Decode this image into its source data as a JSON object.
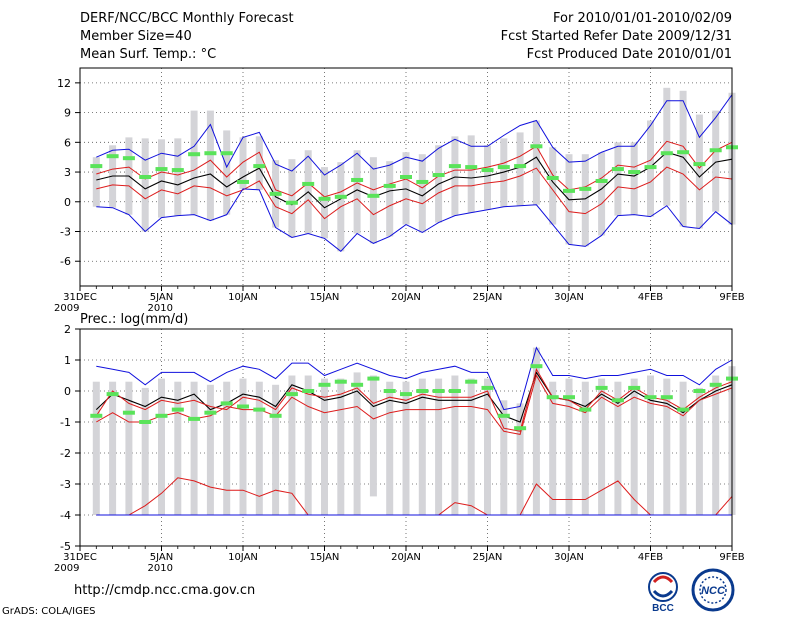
{
  "header": {
    "title": "DERF/NCC/BCC Monthly Forecast",
    "member_size": "Member Size=40",
    "variable": "Mean Surf. Temp.: °C",
    "period": "For 2010/01/01-2010/02/09",
    "started": "Fcst Started Refer Date 2009/12/31",
    "produced": "Fcst Produced Date 2010/01/01"
  },
  "footer": {
    "url": "http://cmdp.ncc.cma.gov.cn",
    "grads": "GrADS: COLA/IGES",
    "logo_left_text": "BCC",
    "logo_right_text": "NCC"
  },
  "colors": {
    "box": "#d4d4d8",
    "mean": "#000000",
    "red": "#dd1c1c",
    "blue": "#1010dd",
    "green": "#5ae35a"
  },
  "chart_data": [
    {
      "type": "line",
      "name": "temperature",
      "title": "Mean Surf. Temp.: °C",
      "ylim": [
        -8.5,
        13.5
      ],
      "xlim": [
        0,
        40
      ],
      "yticks": [
        -6,
        -3,
        0,
        3,
        6,
        9,
        12
      ],
      "yticklabels": [
        "-6",
        "-3",
        "0",
        "3",
        "6",
        "9",
        "12"
      ],
      "xticks": [
        0,
        5,
        10,
        15,
        20,
        25,
        30,
        35,
        40
      ],
      "xticklabels": [
        "31DEC",
        "5JAN",
        "10JAN",
        "15JAN",
        "20JAN",
        "25JAN",
        "30JAN",
        "4FEB",
        "9FEB"
      ],
      "xsublabels": [
        "2009",
        "2010",
        "",
        "",
        "",
        "",
        "",
        "",
        ""
      ],
      "grid": true,
      "x": [
        1,
        2,
        3,
        4,
        5,
        6,
        7,
        8,
        9,
        10,
        11,
        12,
        13,
        14,
        15,
        16,
        17,
        18,
        19,
        20,
        21,
        22,
        23,
        24,
        25,
        26,
        27,
        28,
        29,
        30,
        31,
        32,
        33,
        34,
        35,
        36,
        37,
        38,
        39,
        40
      ],
      "series": [
        {
          "name": "ensemble mean",
          "values": [
            2.2,
            2.6,
            2.6,
            1.3,
            2.1,
            1.7,
            2.4,
            2.8,
            1.5,
            2.5,
            3.4,
            0.5,
            -0.3,
            1.0,
            -0.6,
            0.3,
            1.2,
            0.5,
            1.1,
            1.3,
            0.6,
            1.8,
            2.5,
            2.4,
            2.6,
            3.0,
            3.5,
            4.5,
            2.0,
            0.2,
            0.3,
            1.3,
            2.8,
            2.6,
            3.5,
            5.0,
            4.5,
            2.5,
            4.0,
            4.3
          ]
        },
        {
          "name": "upper red",
          "values": [
            2.8,
            3.3,
            3.5,
            2.3,
            3.0,
            2.7,
            3.2,
            4.2,
            2.5,
            4.0,
            5.0,
            1.2,
            0.6,
            1.9,
            0.5,
            1.0,
            1.9,
            1.2,
            1.8,
            2.3,
            1.4,
            2.6,
            3.2,
            3.2,
            3.5,
            3.9,
            4.6,
            5.6,
            2.7,
            1.2,
            1.5,
            2.4,
            3.7,
            3.5,
            4.2,
            6.1,
            5.6,
            3.4,
            5.2,
            6.0
          ]
        },
        {
          "name": "lower red",
          "values": [
            1.3,
            1.7,
            1.6,
            0.3,
            1.2,
            0.8,
            1.6,
            1.4,
            0.6,
            1.2,
            2.1,
            -0.5,
            -1.2,
            0.2,
            -1.7,
            -0.5,
            0.3,
            -1.3,
            -0.4,
            0.3,
            -0.2,
            0.9,
            1.6,
            1.6,
            1.9,
            2.1,
            2.6,
            3.4,
            1.2,
            -1.0,
            -1.2,
            -0.2,
            1.5,
            1.3,
            2.0,
            3.5,
            2.8,
            1.2,
            2.5,
            2.3
          ]
        },
        {
          "name": "upper blue",
          "values": [
            4.5,
            5.2,
            5.3,
            4.2,
            4.9,
            4.6,
            5.6,
            7.8,
            3.5,
            6.5,
            7.0,
            3.8,
            3.1,
            4.6,
            2.7,
            3.7,
            4.9,
            3.3,
            3.7,
            4.5,
            4.1,
            5.4,
            6.3,
            5.6,
            5.6,
            6.7,
            7.7,
            8.2,
            5.5,
            4.0,
            4.1,
            5.0,
            5.6,
            5.6,
            7.7,
            10.2,
            10.2,
            6.5,
            8.5,
            10.8
          ]
        },
        {
          "name": "lower blue",
          "values": [
            -0.5,
            -0.6,
            -1.3,
            -3.0,
            -1.6,
            -1.4,
            -1.3,
            -1.9,
            -1.3,
            1.3,
            1.2,
            -2.6,
            -3.6,
            -3.2,
            -3.7,
            -5.0,
            -3.2,
            -4.2,
            -3.5,
            -2.3,
            -3.1,
            -2.1,
            -1.4,
            -1.1,
            -0.8,
            -0.5,
            -0.4,
            -0.3,
            -2.3,
            -4.3,
            -4.5,
            -3.4,
            -1.4,
            -1.3,
            -1.5,
            -0.4,
            -2.5,
            -2.7,
            -1.0,
            -2.3
          ]
        },
        {
          "name": "observation marker",
          "values": [
            3.6,
            4.6,
            4.4,
            2.5,
            3.3,
            3.2,
            4.8,
            4.9,
            4.9,
            2.0,
            3.6,
            0.8,
            -0.1,
            1.8,
            0.3,
            0.5,
            2.2,
            0.6,
            1.6,
            2.5,
            2.0,
            2.7,
            3.6,
            3.5,
            3.2,
            3.5,
            3.6,
            5.6,
            2.4,
            1.1,
            1.3,
            2.1,
            3.3,
            3.0,
            3.5,
            4.9,
            5.0,
            3.8,
            5.2,
            5.5
          ]
        }
      ],
      "boxes": {
        "low": [
          -0.5,
          -0.6,
          -1.3,
          -3.0,
          -1.6,
          -1.4,
          -1.3,
          -1.9,
          -1.3,
          1.3,
          1.2,
          -2.6,
          -3.6,
          -3.2,
          -3.7,
          -5.0,
          -3.2,
          -4.2,
          -3.5,
          -2.3,
          -3.1,
          -2.1,
          -1.4,
          -1.1,
          -0.8,
          -0.5,
          -0.4,
          -0.3,
          -2.3,
          -4.3,
          -4.5,
          -3.4,
          -1.4,
          -1.3,
          -1.5,
          -0.4,
          -2.5,
          -2.7,
          -1.0,
          -2.3
        ],
        "high": [
          4.5,
          5.7,
          6.5,
          6.4,
          6.3,
          6.4,
          9.2,
          9.2,
          7.2,
          6.5,
          6.6,
          4.2,
          4.3,
          5.2,
          3.5,
          4.0,
          5.2,
          4.5,
          4.1,
          5.0,
          4.8,
          5.7,
          6.6,
          6.7,
          5.7,
          6.4,
          7.0,
          8.2,
          5.5,
          4.8,
          4.8,
          5.0,
          6.0,
          6.0,
          8.2,
          11.5,
          11.2,
          8.8,
          9.2,
          11.0
        ]
      }
    },
    {
      "type": "line",
      "name": "precipitation",
      "title": "Prec.: log(mm/d)",
      "ylim": [
        -5,
        2
      ],
      "xlim": [
        0,
        40
      ],
      "yticks": [
        -5,
        -4,
        -3,
        -2,
        -1,
        0,
        1,
        2
      ],
      "yticklabels": [
        "-5",
        "-4",
        "-3",
        "-2",
        "-1",
        "0",
        "1",
        "2"
      ],
      "xticks": [
        0,
        5,
        10,
        15,
        20,
        25,
        30,
        35,
        40
      ],
      "xticklabels": [
        "31DEC",
        "5JAN",
        "10JAN",
        "15JAN",
        "20JAN",
        "25JAN",
        "30JAN",
        "4FEB",
        "9FEB"
      ],
      "xsublabels": [
        "2009",
        "2010",
        "",
        "",
        "",
        "",
        "",
        "",
        ""
      ],
      "grid": true,
      "x": [
        1,
        2,
        3,
        4,
        5,
        6,
        7,
        8,
        9,
        10,
        11,
        12,
        13,
        14,
        15,
        16,
        17,
        18,
        19,
        20,
        21,
        22,
        23,
        24,
        25,
        26,
        27,
        28,
        29,
        30,
        31,
        32,
        33,
        34,
        35,
        36,
        37,
        38,
        39,
        40
      ],
      "series": [
        {
          "name": "ensemble mean",
          "values": [
            -0.6,
            -0.1,
            -0.3,
            -0.5,
            -0.2,
            -0.3,
            -0.1,
            -0.6,
            -0.4,
            -0.1,
            -0.2,
            -0.5,
            0.2,
            0.0,
            -0.3,
            -0.2,
            0.0,
            -0.5,
            -0.3,
            -0.4,
            -0.2,
            -0.3,
            -0.3,
            -0.3,
            -0.1,
            -0.8,
            -1.0,
            0.6,
            -0.2,
            -0.3,
            -0.5,
            -0.1,
            -0.4,
            0.0,
            -0.3,
            -0.4,
            -0.7,
            -0.3,
            0.0,
            0.2
          ]
        },
        {
          "name": "upper red",
          "values": [
            -0.8,
            0.0,
            -0.4,
            -0.6,
            -0.3,
            -0.4,
            -0.3,
            -0.5,
            -0.6,
            -0.2,
            -0.3,
            -0.6,
            0.1,
            -0.1,
            -0.2,
            -0.1,
            0.1,
            -0.4,
            -0.2,
            -0.3,
            -0.1,
            -0.2,
            -0.2,
            -0.2,
            0.0,
            -1.2,
            -1.3,
            0.7,
            -0.2,
            -0.3,
            -0.6,
            0.0,
            -0.3,
            0.1,
            -0.2,
            -0.3,
            -0.6,
            -0.2,
            0.1,
            0.3
          ]
        },
        {
          "name": "lower red",
          "values": [
            -1.0,
            -0.7,
            -1.0,
            -1.0,
            -0.8,
            -0.7,
            -0.9,
            -0.8,
            -0.5,
            -0.6,
            -0.6,
            -0.8,
            -0.2,
            -0.5,
            -0.7,
            -0.6,
            -0.5,
            -0.9,
            -0.7,
            -0.6,
            -0.6,
            -0.6,
            -0.5,
            -0.5,
            -0.6,
            -1.3,
            -1.4,
            0.5,
            -0.4,
            -0.5,
            -0.7,
            -0.2,
            -0.5,
            -0.2,
            -0.4,
            -0.5,
            -0.8,
            -0.3,
            -0.1,
            0.1
          ]
        },
        {
          "name": "upper blue",
          "values": [
            0.8,
            0.7,
            0.6,
            0.2,
            0.6,
            0.6,
            0.6,
            0.3,
            0.6,
            0.8,
            0.7,
            0.4,
            0.9,
            0.9,
            0.5,
            0.7,
            0.9,
            0.7,
            0.5,
            0.4,
            0.6,
            0.7,
            0.8,
            0.6,
            0.6,
            -0.6,
            -0.5,
            1.4,
            0.5,
            0.5,
            0.4,
            0.5,
            0.5,
            0.6,
            0.7,
            0.5,
            0.5,
            0.2,
            0.7,
            1.0
          ]
        },
        {
          "name": "lower red trace",
          "values": [
            -4,
            -4,
            -4,
            -3.7,
            -3.3,
            -2.8,
            -2.9,
            -3.1,
            -3.2,
            -3.2,
            -3.4,
            -3.2,
            -3.3,
            -4,
            -4,
            -4,
            -4,
            -4,
            -4,
            -4,
            -4,
            -4,
            -3.6,
            -3.7,
            -4,
            -4,
            -4,
            -3.0,
            -3.5,
            -3.5,
            -3.5,
            -3.2,
            -2.9,
            -3.5,
            -4,
            -4,
            -4,
            -4,
            -4,
            -3.4
          ]
        },
        {
          "name": "observation marker",
          "values": [
            -0.8,
            -0.1,
            -0.7,
            -1.0,
            -0.8,
            -0.6,
            -0.9,
            -0.7,
            -0.4,
            -0.5,
            -0.6,
            -0.8,
            -0.1,
            0.0,
            0.2,
            0.3,
            0.2,
            0.4,
            0.0,
            -0.1,
            0.0,
            0.0,
            0.0,
            0.3,
            0.1,
            -0.8,
            -1.2,
            0.8,
            -0.2,
            -0.2,
            -0.6,
            0.1,
            -0.3,
            0.1,
            -0.2,
            -0.2,
            -0.6,
            0.0,
            0.2,
            0.4
          ]
        }
      ],
      "boxes": {
        "low": [
          -4,
          -4,
          -4,
          -4,
          -4,
          -4,
          -4,
          -4,
          -4,
          -4,
          -4,
          -4,
          -4,
          -4,
          -4,
          -4,
          -4,
          -3.4,
          -4,
          -4,
          -4,
          -4,
          -4,
          -4,
          -4,
          -4,
          -4,
          -4,
          -4,
          -4,
          -4,
          -4,
          -4,
          -4,
          -4,
          -4,
          -4,
          -4,
          -4,
          -4
        ],
        "high": [
          0.3,
          0.3,
          0.3,
          0.1,
          0.4,
          0.3,
          0.3,
          0.2,
          0.3,
          0.4,
          0.3,
          0.2,
          0.5,
          0.5,
          0.4,
          0.4,
          0.6,
          0.5,
          0.3,
          0.3,
          0.4,
          0.4,
          0.5,
          0.4,
          0.4,
          -0.3,
          -0.4,
          1.4,
          0.3,
          0.4,
          0.3,
          0.4,
          0.3,
          0.4,
          0.5,
          0.4,
          0.3,
          0.1,
          0.5,
          0.8
        ]
      }
    }
  ]
}
